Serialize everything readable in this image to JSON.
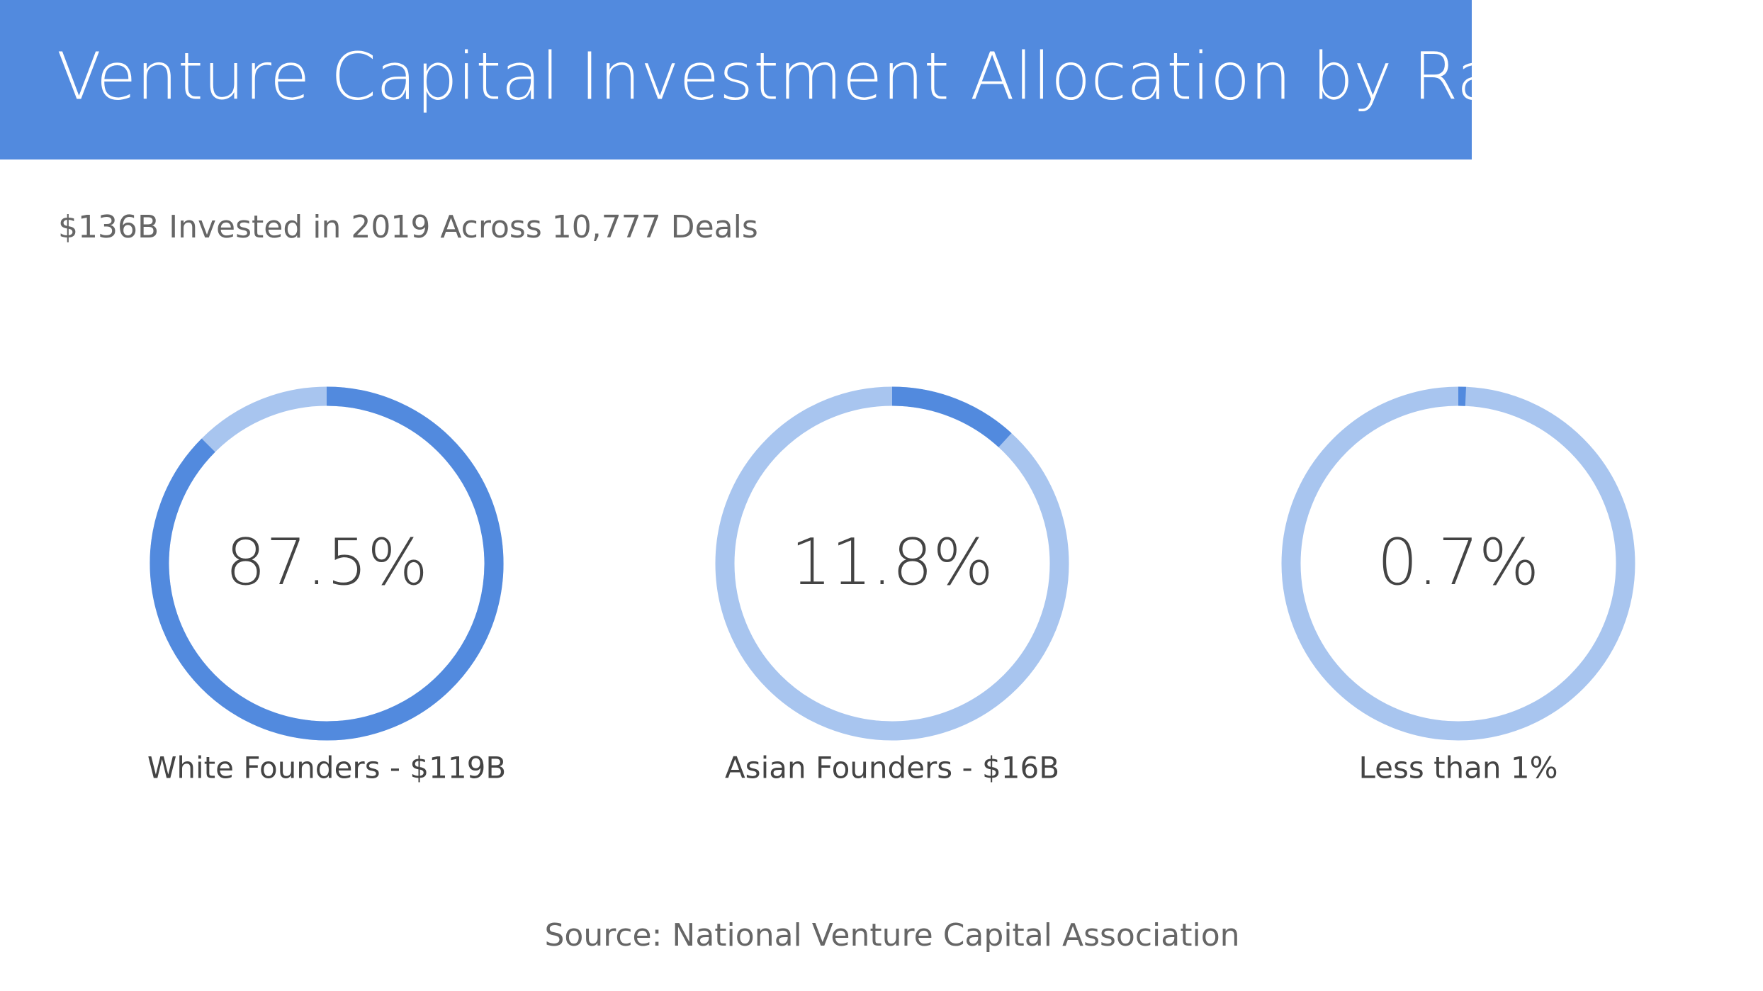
{
  "title": "Venture Capital Investment Allocation by Race",
  "subtitle": "$136B Invested in 2019 Across 10,777 Deals",
  "source": "Source: National Venture Capital Association",
  "chart_data": [
    {
      "type": "donut",
      "values": [
        87.5
      ],
      "value_labels": [
        "87.5%"
      ],
      "label": "White Founders - $119B",
      "color": "#528ade",
      "track_color": "#a8c5ef"
    },
    {
      "type": "donut",
      "values": [
        11.8
      ],
      "value_labels": [
        "11.8%"
      ],
      "label": "Asian Founders - $16B",
      "color": "#528ade",
      "track_color": "#a8c5ef"
    },
    {
      "type": "donut",
      "values": [
        0.7
      ],
      "value_labels": [
        "0.7%"
      ],
      "label": "Less than 1%",
      "color": "#528ade",
      "track_color": "#a8c5ef"
    }
  ]
}
